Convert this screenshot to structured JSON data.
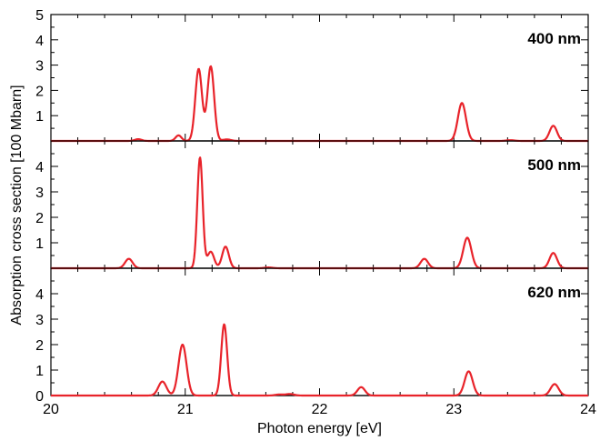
{
  "chart_data": {
    "type": "line",
    "xlabel": "Photon energy [eV]",
    "ylabel": "Absorption cross section [100 Mbarn]",
    "xlim": [
      20,
      24
    ],
    "x_ticks": [
      20,
      21,
      22,
      23,
      24
    ],
    "line_color": "#e8232a",
    "panels": [
      {
        "label": "400 nm",
        "ylim": [
          0,
          5
        ],
        "y_ticks": [
          1,
          2,
          3,
          4,
          5
        ],
        "peaks": [
          {
            "x": 20.65,
            "y": 0.07,
            "w": 0.025
          },
          {
            "x": 20.95,
            "y": 0.22,
            "w": 0.022
          },
          {
            "x": 21.1,
            "y": 2.85,
            "w": 0.025
          },
          {
            "x": 21.19,
            "y": 2.95,
            "w": 0.025
          },
          {
            "x": 21.31,
            "y": 0.06,
            "w": 0.03
          },
          {
            "x": 23.06,
            "y": 1.5,
            "w": 0.03
          },
          {
            "x": 23.42,
            "y": 0.03,
            "w": 0.03
          },
          {
            "x": 23.74,
            "y": 0.6,
            "w": 0.028
          }
        ]
      },
      {
        "label": "500 nm",
        "ylim": [
          0,
          5
        ],
        "y_ticks": [
          1,
          2,
          3,
          4
        ],
        "peaks": [
          {
            "x": 20.58,
            "y": 0.37,
            "w": 0.028
          },
          {
            "x": 21.11,
            "y": 4.35,
            "w": 0.02
          },
          {
            "x": 21.19,
            "y": 0.65,
            "w": 0.025
          },
          {
            "x": 21.3,
            "y": 0.85,
            "w": 0.025
          },
          {
            "x": 21.62,
            "y": 0.03,
            "w": 0.03
          },
          {
            "x": 22.78,
            "y": 0.37,
            "w": 0.028
          },
          {
            "x": 23.1,
            "y": 1.2,
            "w": 0.03
          },
          {
            "x": 23.74,
            "y": 0.6,
            "w": 0.028
          }
        ]
      },
      {
        "label": "620 nm",
        "ylim": [
          0,
          5
        ],
        "y_ticks": [
          0,
          1,
          2,
          3,
          4
        ],
        "peaks": [
          {
            "x": 20.83,
            "y": 0.55,
            "w": 0.03
          },
          {
            "x": 20.98,
            "y": 2.0,
            "w": 0.03
          },
          {
            "x": 21.29,
            "y": 2.8,
            "w": 0.022
          },
          {
            "x": 21.7,
            "y": 0.04,
            "w": 0.03
          },
          {
            "x": 21.78,
            "y": 0.06,
            "w": 0.03
          },
          {
            "x": 22.31,
            "y": 0.33,
            "w": 0.028
          },
          {
            "x": 23.11,
            "y": 0.95,
            "w": 0.03
          },
          {
            "x": 23.75,
            "y": 0.45,
            "w": 0.03
          }
        ]
      }
    ]
  }
}
